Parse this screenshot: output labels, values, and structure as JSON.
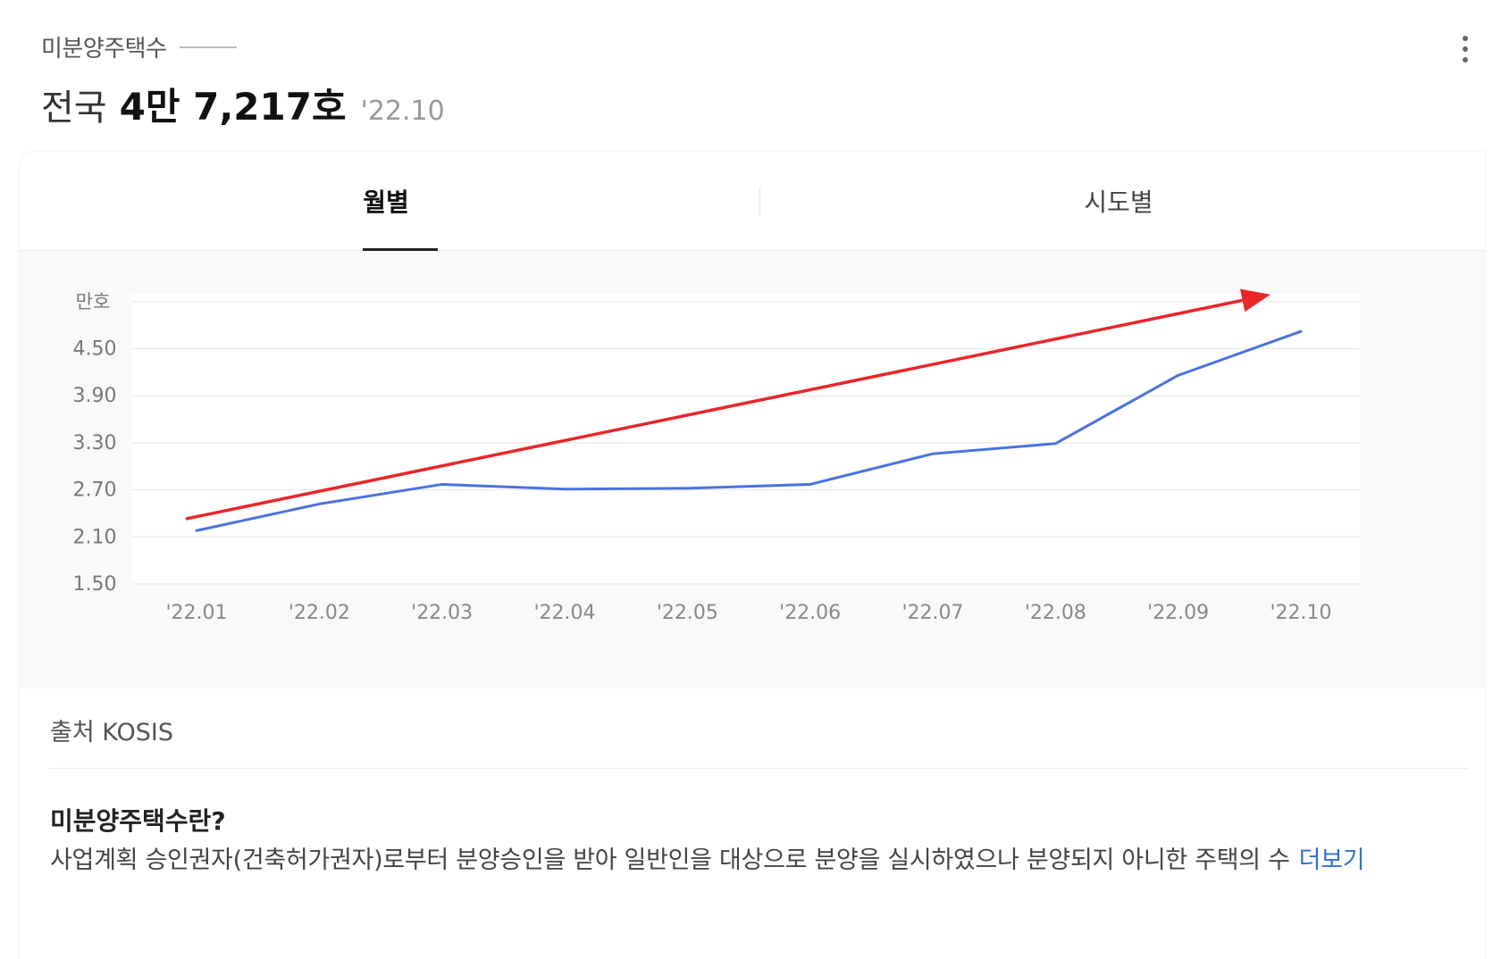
{
  "header": {
    "label": "미분양주택수",
    "region": "전국",
    "total": "4만 7,217호",
    "as_of": "'22.10"
  },
  "tabs": [
    {
      "label": "월별",
      "active": true
    },
    {
      "label": "시도별",
      "active": false
    }
  ],
  "chart_data": {
    "type": "line",
    "unit_label": "만호",
    "categories": [
      "'22.01",
      "'22.02",
      "'22.03",
      "'22.04",
      "'22.05",
      "'22.06",
      "'22.07",
      "'22.08",
      "'22.09",
      "'22.10"
    ],
    "y_ticks": [
      "4.50",
      "3.90",
      "3.30",
      "2.70",
      "2.10",
      "1.50"
    ],
    "ylim": [
      1.5,
      5.2
    ],
    "series": [
      {
        "values": [
          2.18,
          2.52,
          2.77,
          2.71,
          2.72,
          2.77,
          3.16,
          3.29,
          4.16,
          4.72
        ],
        "color": "#4a72dd"
      }
    ],
    "annotation": {
      "type": "trend-arrow",
      "color": "#e8262b",
      "from": [
        0,
        2.33
      ],
      "to": [
        9,
        5.19
      ]
    },
    "grid": true
  },
  "source": "출처 KOSIS",
  "definition": {
    "title": "미분양주택수란?",
    "body": "사업계획 승인권자(건축허가권자)로부터 분양승인을 받아 일반인을 대상으로 분양을 실시하였으나 분양되지 아니한 주택의 수",
    "more": "더보기"
  }
}
